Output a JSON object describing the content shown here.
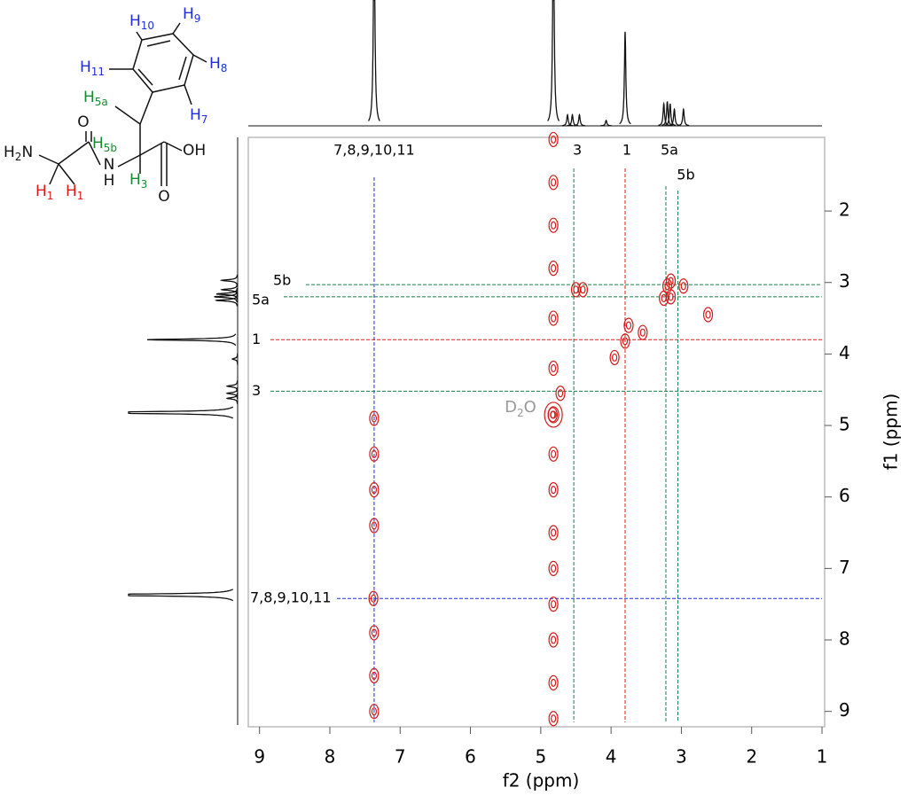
{
  "chart_data": {
    "type": "cosy",
    "xlabel": "f2 (ppm)",
    "ylabel": "f1 (ppm)",
    "xlim": [
      9.16,
      1
    ],
    "xticks": [
      9,
      8,
      7,
      6,
      5,
      4,
      3,
      2,
      1
    ],
    "ylim": [
      0.97,
      9.19
    ],
    "yticks": [
      2,
      3,
      4,
      5,
      6,
      7,
      8,
      9
    ],
    "contour_color": "#d41c1c",
    "assignments": [
      {
        "label": "7,8,9,10,11",
        "f2": 7.37,
        "f1": 7.42,
        "color": "#1f2fd8"
      },
      {
        "label": "3",
        "f2": 4.53,
        "f1": 4.52,
        "color": "#16804a"
      },
      {
        "label": "1",
        "f2": 3.8,
        "f1": 3.8,
        "color": "#e01818"
      },
      {
        "label": "5a",
        "f2": 3.22,
        "f1": 3.2,
        "color": "#16804a"
      },
      {
        "label": "5b",
        "f2": 3.05,
        "f1": 3.03,
        "color": "#16804a"
      }
    ],
    "solvent": {
      "text": "D",
      "sub": "2",
      "after": "O",
      "f2": 4.82,
      "f1": 4.85
    },
    "peaks": [
      [
        7.38,
        7.42
      ],
      [
        4.83,
        4.85
      ],
      [
        3.8,
        3.82
      ],
      [
        3.2,
        3.05
      ],
      [
        3.15,
        3.2
      ],
      [
        2.97,
        3.05
      ],
      [
        4.5,
        3.1
      ],
      [
        4.4,
        3.1
      ],
      [
        3.25,
        3.22
      ],
      [
        3.15,
        2.98
      ],
      [
        4.72,
        4.55
      ],
      [
        3.75,
        3.6
      ],
      [
        2.62,
        3.45
      ],
      [
        3.55,
        3.7
      ],
      [
        3.95,
        4.05
      ],
      [
        4.82,
        1.0
      ],
      [
        4.82,
        1.6
      ],
      [
        4.82,
        2.2
      ],
      [
        4.82,
        2.8
      ],
      [
        4.82,
        3.5
      ],
      [
        4.82,
        4.2
      ],
      [
        4.82,
        5.4
      ],
      [
        4.82,
        5.9
      ],
      [
        4.82,
        6.5
      ],
      [
        4.82,
        7.0
      ],
      [
        4.82,
        7.5
      ],
      [
        4.82,
        8.0
      ],
      [
        4.82,
        8.6
      ],
      [
        4.82,
        9.1
      ],
      [
        7.37,
        4.9
      ],
      [
        7.37,
        5.4
      ],
      [
        7.37,
        5.9
      ],
      [
        7.37,
        6.4
      ],
      [
        7.37,
        7.9
      ],
      [
        7.37,
        8.5
      ],
      [
        7.37,
        9.0
      ]
    ],
    "projection": [
      {
        "shift": 7.37,
        "height": 2
      },
      {
        "shift": 4.82,
        "height": 2
      },
      {
        "shift": 4.62,
        "height": 0.1
      },
      {
        "shift": 4.55,
        "height": 0.1
      },
      {
        "shift": 4.45,
        "height": 0.1
      },
      {
        "shift": 4.07,
        "height": 0.05
      },
      {
        "shift": 3.8,
        "height": 0.85
      },
      {
        "shift": 3.25,
        "height": 0.2
      },
      {
        "shift": 3.2,
        "height": 0.22
      },
      {
        "shift": 3.16,
        "height": 0.2
      },
      {
        "shift": 3.1,
        "height": 0.15
      },
      {
        "shift": 2.97,
        "height": 0.15
      }
    ]
  },
  "molecule": {
    "labels": [
      {
        "text": "H",
        "sub": "10"
      },
      {
        "text": "H",
        "sub": "9"
      },
      {
        "text": "H",
        "sub": "8"
      },
      {
        "text": "H",
        "sub": "7"
      },
      {
        "text": "H",
        "sub": "11"
      },
      {
        "text": "H",
        "sub": "5a"
      },
      {
        "text": "H",
        "sub": "5b"
      },
      {
        "text": "H",
        "sub": "3"
      },
      {
        "text": "H",
        "sub": "1"
      },
      {
        "text": "H",
        "sub": "1"
      },
      {
        "text": "H",
        "sub": "2",
        "after": "N"
      },
      {
        "text": "O"
      },
      {
        "text": "N"
      },
      {
        "text": "H"
      },
      {
        "text": "OH"
      },
      {
        "text": "O"
      }
    ]
  }
}
